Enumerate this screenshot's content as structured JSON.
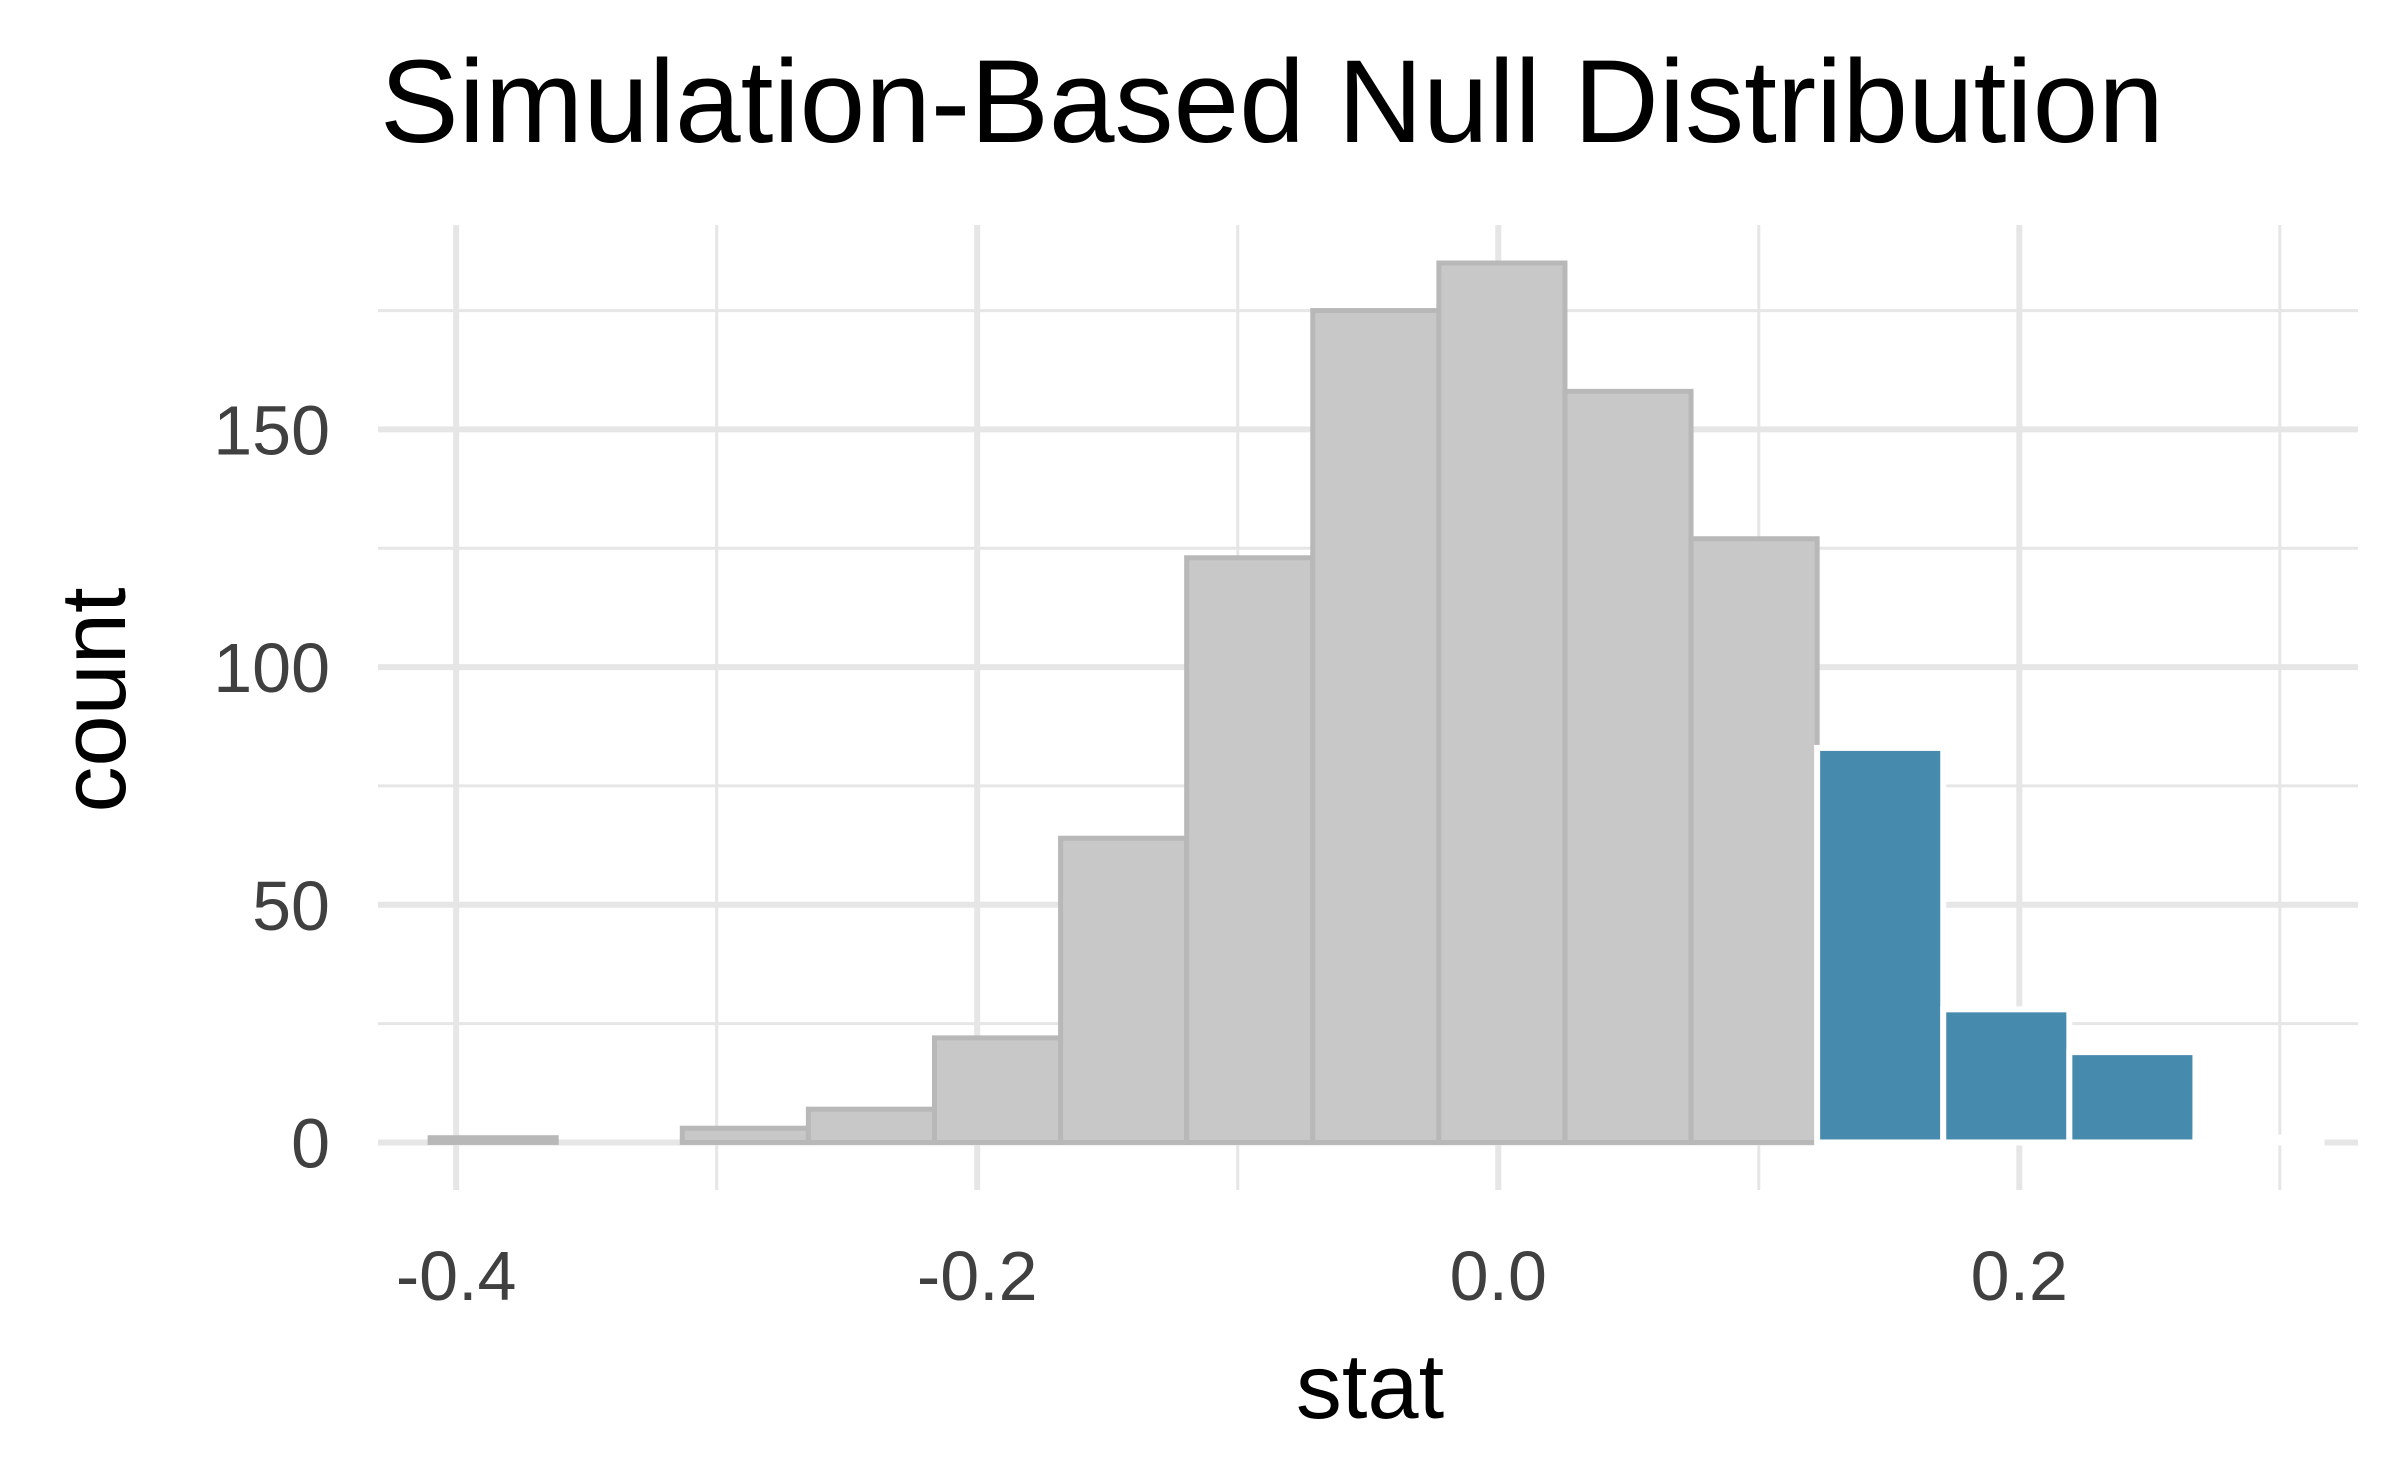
{
  "chart_data": {
    "type": "bar",
    "title": "Simulation-Based Null Distribution",
    "xlabel": "stat",
    "ylabel": "count",
    "xlim": [
      -0.43,
      0.33
    ],
    "ylim": [
      -10,
      193
    ],
    "x_ticks": [
      -0.4,
      -0.2,
      0.0,
      0.2
    ],
    "x_tick_labels": [
      "-0.4",
      "-0.2",
      "0.0",
      "0.2"
    ],
    "y_ticks": [
      0,
      50,
      100,
      150
    ],
    "y_tick_labels": [
      "0",
      "50",
      "100",
      "150"
    ],
    "grid": true,
    "bin_edges": [
      -0.41,
      -0.3616,
      -0.3132,
      -0.2648,
      -0.2164,
      -0.168,
      -0.1196,
      -0.0712,
      -0.0228,
      0.0256,
      0.074,
      0.1224,
      0.1708,
      0.2192,
      0.2676,
      0.316
    ],
    "series": [
      {
        "values": [
          1,
          0,
          3,
          7,
          22,
          64,
          123,
          175,
          185,
          158,
          127,
          83,
          28,
          19,
          1
        ],
        "shaded": [
          false,
          false,
          false,
          false,
          false,
          false,
          false,
          false,
          false,
          false,
          false,
          true,
          true,
          true,
          true
        ]
      }
    ],
    "colors": {
      "bar_fill": "#c8c8c8",
      "bar_stroke": "#b8b8b8",
      "shade_fill": "#468aae",
      "shade_stroke": "#ffffff",
      "grid": "#e6e6e6"
    }
  }
}
